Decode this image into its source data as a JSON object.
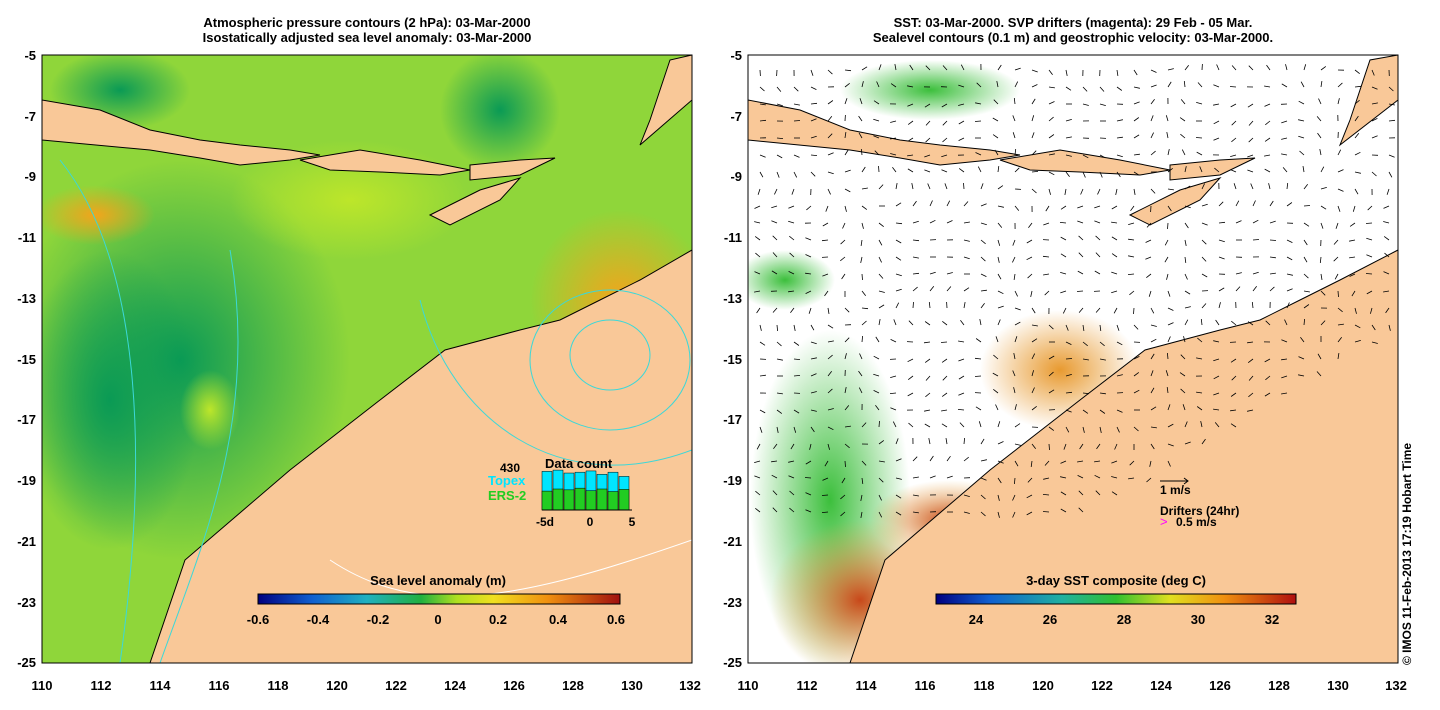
{
  "left_panel": {
    "title_line1": "Atmospheric pressure contours (2 hPa): 03-Mar-2000",
    "title_line2": "Isostatically adjusted sea level anomaly: 03-Mar-2000",
    "colorbar_label": "Sea level anomaly (m)",
    "colorbar_ticks": [
      "-0.6",
      "-0.4",
      "-0.2",
      "0",
      "0.2",
      "0.4",
      "0.6"
    ],
    "data_count": {
      "title": "Data count",
      "max_label": "430",
      "topex_label": "Topex",
      "ers_label": "ERS-2",
      "x_ticks": [
        "-5d",
        "0",
        "5"
      ],
      "topex_counts": [
        0.92,
        0.95,
        0.88,
        0.9,
        0.93,
        0.85,
        0.9,
        0.8
      ],
      "ers_counts": [
        0.45,
        0.5,
        0.48,
        0.52,
        0.46,
        0.5,
        0.44,
        0.49
      ]
    },
    "colors": {
      "topex": "#00e5ff",
      "ers": "#22cc22"
    }
  },
  "right_panel": {
    "title_line1": "SST: 03-Mar-2000. SVP drifters (magenta): 29 Feb - 05 Mar.",
    "title_line2": "Sealevel contours (0.1 m) and geostrophic velocity: 03-Mar-2000.",
    "colorbar_label": "3-day SST composite (deg C)",
    "colorbar_ticks": [
      "24",
      "26",
      "28",
      "30",
      "32"
    ],
    "velocity_legend": "1 m/s",
    "drifter_legend_title": "Drifters (24hr)",
    "drifter_legend_value": "0.5 m/s",
    "colors": {
      "drifter": "#ff00ff"
    }
  },
  "axes": {
    "lat_ticks": [
      "-5",
      "-7",
      "-9",
      "-11",
      "-13",
      "-15",
      "-17",
      "-19",
      "-21",
      "-23",
      "-25"
    ],
    "lon_ticks": [
      "110",
      "112",
      "114",
      "116",
      "118",
      "120",
      "122",
      "124",
      "126",
      "128",
      "130",
      "132"
    ]
  },
  "copyright": "© IMOS 11-Feb-2013 17:19 Hobart Time",
  "colors": {
    "land": "#f9c898",
    "water_green": "#22bb44",
    "water_yellow": "#ccee22"
  }
}
